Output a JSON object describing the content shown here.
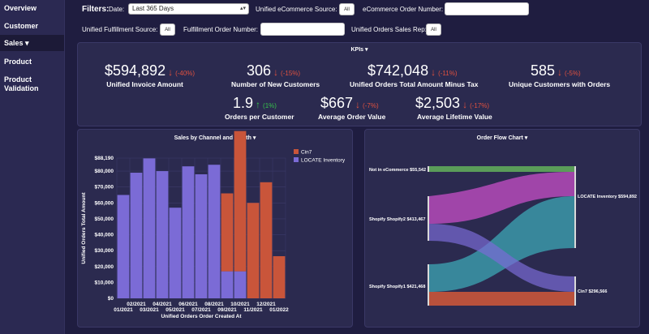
{
  "sidebar": {
    "items": [
      {
        "label": "Overview"
      },
      {
        "label": "Customer"
      },
      {
        "label": "Sales ▾"
      },
      {
        "label": "Product"
      },
      {
        "label": "Product Validation"
      }
    ]
  },
  "filters": {
    "label": "Filters:",
    "date_label": "Date:",
    "date_value": "Last 365 Days",
    "ecommerce_source_label": "Unified eCommerce Source:",
    "ecommerce_source_value": "All",
    "ecommerce_order_label": "eCommerce Order Number:",
    "ecommerce_order_value": "",
    "fulfillment_source_label": "Unified Fulfillment Source:",
    "fulfillment_source_value": "All",
    "fulfillment_order_label": "Fulfillment Order Number:",
    "fulfillment_order_value": "",
    "sales_rep_label": "Unified Orders Sales Rep:",
    "sales_rep_value": "All"
  },
  "kpis": {
    "title": "KPIs ▾",
    "items": [
      {
        "value": "$594,892",
        "arrow": "↓",
        "change": "(-40%)",
        "label": "Unified Invoice Amount"
      },
      {
        "value": "306",
        "arrow": "↓",
        "change": "(-15%)",
        "label": "Number of New Customers"
      },
      {
        "value": "$742,048",
        "arrow": "↓",
        "change": "(-11%)",
        "label": "Unified Orders Total Amount Minus Tax"
      },
      {
        "value": "585",
        "arrow": "↓",
        "change": "(-5%)",
        "label": "Unique Customers with Orders"
      },
      {
        "value": "1.9",
        "arrow": "↑",
        "change": "(1%)",
        "label": "Orders per Customer"
      },
      {
        "value": "$667",
        "arrow": "↓",
        "change": "(-7%)",
        "label": "Average Order Value"
      },
      {
        "value": "$2,503",
        "arrow": "↓",
        "change": "(-17%)",
        "label": "Average Lifetime Value"
      }
    ],
    "colors": {
      "down": "#e0513f",
      "up": "#36c24b"
    }
  },
  "sales_chart": {
    "title": "Sales by Channel and Month ▾"
  },
  "flow_chart": {
    "title": "Order Flow Chart ▾",
    "sources": [
      {
        "label": "Not in eCommerce $55,542"
      },
      {
        "label": "Shopify Shopify2 $413,467"
      },
      {
        "label": "Shopify Shopify1 $421,468"
      }
    ],
    "targets": [
      {
        "label": "LOCATE Inventory $594,892"
      },
      {
        "label": "Cin7 $296,566"
      }
    ],
    "colors": {
      "green": "#5fa85a",
      "magenta": "#b54ab8",
      "teal": "#3b98a8",
      "purple": "#7b6bd6",
      "orange": "#c9553a"
    }
  },
  "chart_data": {
    "type": "bar",
    "title": "Sales by Channel and Month",
    "xlabel": "Unified Orders Order Created At",
    "ylabel": "Unified Orders Total Amount",
    "ylim": [
      0,
      88190
    ],
    "yticks": [
      "$0",
      "$10,000",
      "$20,000",
      "$30,000",
      "$40,000",
      "$50,000",
      "$60,000",
      "$70,000",
      "$80,000",
      "$88,190"
    ],
    "ytick_values": [
      0,
      10000,
      20000,
      30000,
      40000,
      50000,
      60000,
      70000,
      80000,
      88190
    ],
    "categories": [
      "01/2021",
      "02/2021",
      "03/2021",
      "04/2021",
      "05/2021",
      "06/2021",
      "07/2021",
      "08/2021",
      "09/2021",
      "10/2021",
      "11/2021",
      "12/2021",
      "01/2022"
    ],
    "xtick_labels_top": [
      "02/2021",
      "04/2021",
      "06/2021",
      "08/2021",
      "10/2021",
      "12/2021"
    ],
    "xtick_labels_bottom": [
      "01/2021",
      "03/2021",
      "05/2021",
      "07/2021",
      "09/2021",
      "11/2021",
      "01/2022"
    ],
    "series": [
      {
        "name": "Cin7",
        "color": "#c9553a",
        "values": [
          0,
          0,
          0,
          0,
          0,
          0,
          0,
          0,
          49000,
          88190,
          60000,
          73000,
          26500
        ]
      },
      {
        "name": "LOCATE Inventory",
        "color": "#7b6bd6",
        "values": [
          65000,
          79000,
          88000,
          80000,
          57000,
          83000,
          78000,
          84000,
          17000,
          17000,
          0,
          0,
          0
        ]
      }
    ],
    "legend_position": "top-right",
    "grid": true
  }
}
